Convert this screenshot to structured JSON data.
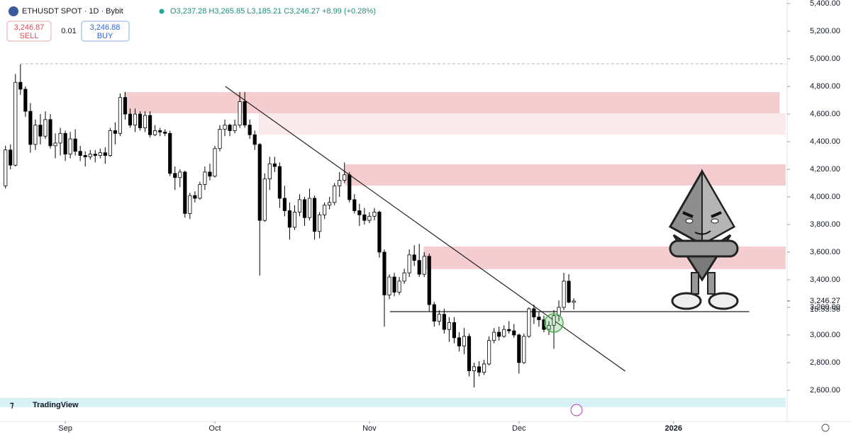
{
  "chart_data": {
    "type": "candlestick",
    "header": {
      "symbol": "ETHUSDT SPOT · 1D · Bybit",
      "ohlc": "O3,237.28 H3,265.85 L3,185.21 C3,246.27 +8.99 (+0.28%)"
    },
    "trade": {
      "sell_price": "3,246.87",
      "sell_label": "SELL",
      "spread": "0.01",
      "buy_price": "3,246.88",
      "buy_label": "BUY"
    },
    "brand": "TradingView",
    "up_color": "#ffffff",
    "down_color": "#000000",
    "open": [
      4080,
      4340,
      4230,
      4830,
      4780,
      4620,
      4380,
      4520,
      4440,
      4560,
      4370,
      4390,
      4460,
      4310,
      4420,
      4330,
      4300,
      4290,
      4310,
      4300,
      4320,
      4300,
      4480,
      4460,
      4720,
      4600,
      4520,
      4600,
      4500,
      4590,
      4450,
      4480,
      4470,
      4460,
      4170,
      4140,
      4180,
      3880,
      4010,
      3990,
      4090,
      4180,
      4150,
      4350,
      4490,
      4520,
      4480,
      4520,
      4690,
      4520,
      4450,
      4380,
      3830,
      4130,
      4240,
      4220,
      3990,
      3900,
      3780,
      3890,
      3980,
      3850,
      3990,
      3750,
      3870,
      3940,
      3960,
      4080,
      4120,
      4160,
      3980,
      3900,
      3870,
      3830,
      3860,
      3890,
      3600,
      3290,
      3420,
      3310,
      3390,
      3450,
      3580,
      3540,
      3440,
      3570,
      3220,
      3100,
      3150,
      3040,
      3090,
      2980,
      2920,
      2990,
      2740,
      2770,
      2730,
      2790,
      2960,
      3020,
      2990,
      3040,
      3030,
      3000,
      2800,
      2990,
      3190,
      3130,
      3110,
      3040,
      3070,
      3140,
      3200,
      3390,
      3237.28
    ],
    "high": [
      4370,
      4380,
      4890,
      4960,
      4800,
      4680,
      4560,
      4600,
      4620,
      4600,
      4460,
      4500,
      4480,
      4470,
      4490,
      4370,
      4330,
      4340,
      4340,
      4350,
      4360,
      4500,
      4540,
      4750,
      4760,
      4640,
      4640,
      4620,
      4620,
      4620,
      4520,
      4500,
      4490,
      4480,
      4220,
      4200,
      4190,
      4030,
      4040,
      4110,
      4220,
      4240,
      4370,
      4520,
      4560,
      4530,
      4560,
      4760,
      4760,
      4560,
      4480,
      4390,
      4170,
      4290,
      4290,
      4250,
      4080,
      3960,
      3940,
      4020,
      4000,
      4060,
      4010,
      3890,
      3960,
      4000,
      4100,
      4180,
      4250,
      4180,
      4020,
      3950,
      3920,
      3890,
      3920,
      3900,
      3620,
      3440,
      3450,
      3420,
      3480,
      3620,
      3650,
      3660,
      3600,
      3590,
      3240,
      3180,
      3190,
      3130,
      3130,
      3020,
      3050,
      3010,
      2800,
      2810,
      2820,
      2990,
      3050,
      3060,
      3070,
      3100,
      3080,
      3010,
      3010,
      3200,
      3220,
      3170,
      3140,
      3100,
      3180,
      3250,
      3450,
      3440,
      3265.85
    ],
    "low": [
      4060,
      4200,
      4220,
      4740,
      4580,
      4320,
      4340,
      4380,
      4420,
      4350,
      4280,
      4300,
      4260,
      4280,
      4300,
      4260,
      4220,
      4270,
      4250,
      4280,
      4240,
      4290,
      4380,
      4440,
      4560,
      4500,
      4470,
      4480,
      4470,
      4430,
      4440,
      4440,
      4440,
      4150,
      4050,
      4070,
      3850,
      3840,
      3960,
      3980,
      4050,
      4120,
      4140,
      4330,
      4440,
      4440,
      4460,
      4500,
      4500,
      4420,
      4340,
      3430,
      3820,
      4050,
      4180,
      3920,
      3860,
      3690,
      3760,
      3860,
      3790,
      3830,
      3690,
      3700,
      3840,
      3910,
      3940,
      4000,
      4100,
      3960,
      3880,
      3790,
      3800,
      3810,
      3830,
      3560,
      3060,
      3260,
      3280,
      3290,
      3370,
      3420,
      3500,
      3420,
      3420,
      3170,
      3060,
      3070,
      3010,
      2950,
      2940,
      2880,
      2860,
      2700,
      2620,
      2700,
      2710,
      2780,
      2940,
      2960,
      2980,
      3010,
      2980,
      2720,
      2790,
      2980,
      3080,
      3060,
      3020,
      3000,
      2900,
      3100,
      3180,
      3230,
      3185.21
    ],
    "close": [
      4340,
      4230,
      4830,
      4780,
      4620,
      4380,
      4520,
      4440,
      4560,
      4370,
      4390,
      4460,
      4310,
      4420,
      4330,
      4300,
      4290,
      4310,
      4300,
      4320,
      4300,
      4480,
      4460,
      4720,
      4600,
      4520,
      4600,
      4500,
      4590,
      4450,
      4480,
      4470,
      4460,
      4170,
      4140,
      4180,
      3880,
      4010,
      3990,
      4090,
      4180,
      4150,
      4350,
      4490,
      4520,
      4480,
      4520,
      4690,
      4520,
      4450,
      4380,
      3830,
      4130,
      4240,
      4220,
      3990,
      3900,
      3780,
      3890,
      3980,
      3850,
      3990,
      3750,
      3870,
      3940,
      3960,
      4080,
      4120,
      4160,
      3980,
      3900,
      3870,
      3830,
      3860,
      3890,
      3600,
      3290,
      3420,
      3310,
      3390,
      3450,
      3580,
      3540,
      3440,
      3570,
      3220,
      3100,
      3150,
      3040,
      3090,
      2980,
      2920,
      2990,
      2740,
      2770,
      2730,
      2790,
      2960,
      3020,
      2990,
      3040,
      3030,
      3000,
      2800,
      2990,
      3190,
      3130,
      3110,
      3040,
      3070,
      3140,
      3200,
      3390,
      3237.28,
      3246.27
    ],
    "xlim": [
      -1.1,
      156.8
    ],
    "xticks": [
      {
        "value": 12,
        "label": "Sep"
      },
      {
        "value": 42,
        "label": "Oct"
      },
      {
        "value": 73,
        "label": "Nov"
      },
      {
        "value": 103,
        "label": "Dec"
      },
      {
        "value": 134,
        "label": "2026"
      }
    ],
    "ylim": [
      2374,
      5426
    ],
    "yticks": [
      {
        "value": 2600,
        "label": "2,600.00"
      },
      {
        "value": 2800,
        "label": "2,800.00"
      },
      {
        "value": 3000,
        "label": "3,000.00"
      },
      {
        "value": 3200,
        "label": "3,200.00"
      },
      {
        "value": 3400,
        "label": "3,400.00"
      },
      {
        "value": 3600,
        "label": "3,600.00"
      },
      {
        "value": 3800,
        "label": "3,800.00"
      },
      {
        "value": 4000,
        "label": "4,000.00"
      },
      {
        "value": 4200,
        "label": "4,200.00"
      },
      {
        "value": 4400,
        "label": "4,400.00"
      },
      {
        "value": 4600,
        "label": "4,600.00"
      },
      {
        "value": 4800,
        "label": "4,800.00"
      },
      {
        "value": 5000,
        "label": "5,000.00"
      },
      {
        "value": 5200,
        "label": "5,200.00"
      },
      {
        "value": 5400,
        "label": "5,400.00"
      }
    ],
    "last_price": {
      "value": 3246.27,
      "label": "3,246.27"
    },
    "countdown": "15:53:56",
    "zones": [
      {
        "from": 4605,
        "to": 4759,
        "x0": 23.8,
        "x1": 155.3,
        "color": "#f4cdd0"
      },
      {
        "from": 4450,
        "to": 4605,
        "x0": 50.8,
        "x1": 156.5,
        "color": "#fbeaeb"
      },
      {
        "from": 4082,
        "to": 4236,
        "x0": 68.1,
        "x1": 156.5,
        "color": "#f4cdd0"
      },
      {
        "from": 3477,
        "to": 3641,
        "x0": 83.9,
        "x1": 156.5,
        "color": "#f4cdd0"
      },
      {
        "from": 2477,
        "to": 2544,
        "x0": -1.1,
        "x1": 156.5,
        "color": "#d8f1f5"
      }
    ],
    "high_line": {
      "x": [
        3,
        156.5
      ],
      "y": [
        4964,
        4964
      ],
      "color": "#bbbbbb"
    },
    "trendline": {
      "x": [
        44.1,
        124.3
      ],
      "y": [
        4800,
        2738
      ],
      "color": "#222222"
    },
    "support": {
      "x": [
        77.1,
        149.2
      ],
      "y": [
        3169,
        3169
      ],
      "color": "#222222"
    },
    "marker": {
      "x": 110,
      "y": 3087,
      "color": "#4caf50"
    }
  }
}
